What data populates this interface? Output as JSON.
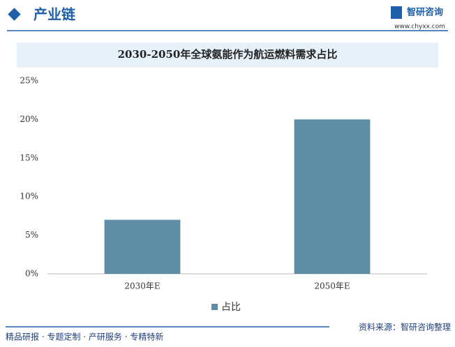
{
  "header": {
    "section": "产业链",
    "brand": "智研咨询",
    "url": "www.chyxx.com"
  },
  "chart_data": {
    "type": "bar",
    "title": "2030-2050年全球氨能作为航运燃料需求占比",
    "categories": [
      "2030年E",
      "2050年E"
    ],
    "series": [
      {
        "name": "占比",
        "color": "#5d8ea6",
        "values": [
          7,
          20
        ]
      }
    ],
    "ylim": [
      0,
      25
    ],
    "yticks": [
      {
        "value": 0,
        "label": "0%"
      },
      {
        "value": 5,
        "label": "5%"
      },
      {
        "value": 10,
        "label": "10%"
      },
      {
        "value": 15,
        "label": "15%"
      },
      {
        "value": 20,
        "label": "20%"
      },
      {
        "value": 25,
        "label": "25%"
      }
    ],
    "grid": false,
    "legend": "bottom"
  },
  "footer": {
    "left": "精品研报 · 专题定制 · 产研服务 · 专精特新",
    "source": "资料来源：智研咨询整理"
  }
}
